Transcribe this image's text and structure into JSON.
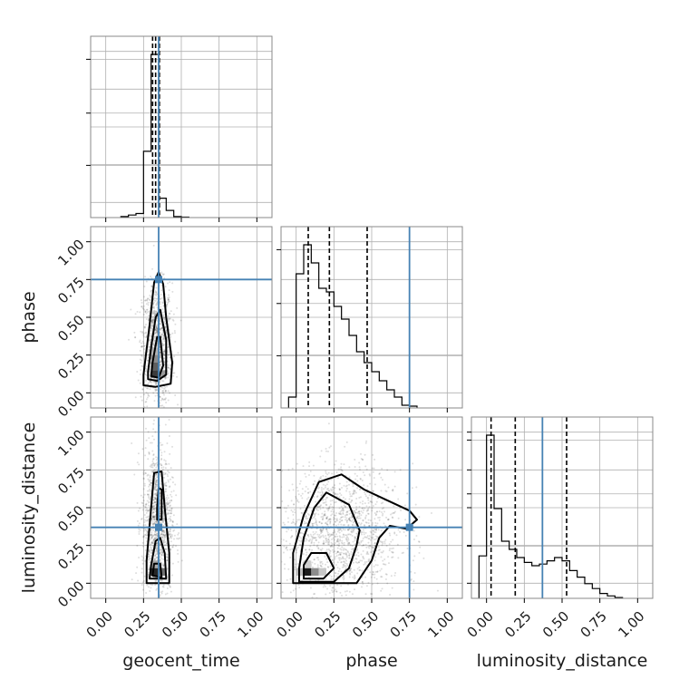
{
  "chart_data": {
    "type": "corner",
    "parameters": [
      "geocent_time",
      "phase",
      "luminosity_distance"
    ],
    "axis_range": [
      -0.1,
      1.1
    ],
    "tick_values": [
      0.0,
      0.25,
      0.5,
      0.75,
      1.0
    ],
    "tick_labels": [
      "0.00",
      "0.25",
      "0.50",
      "0.75",
      "1.00"
    ],
    "axis_labels": {
      "x": [
        "geocent_time",
        "phase",
        "luminosity_distance"
      ],
      "y": [
        "phase",
        "luminosity_distance"
      ]
    },
    "truths": {
      "geocent_time": 0.35,
      "phase": 0.75,
      "luminosity_distance": 0.37
    },
    "truth_color": "#4682b4",
    "grid": true,
    "marginals": [
      {
        "parameter": "geocent_time",
        "quantiles": [
          0.31,
          0.33,
          0.355
        ],
        "bins": [
          {
            "x": 0.125,
            "v": 2
          },
          {
            "x": 0.175,
            "v": 5
          },
          {
            "x": 0.225,
            "v": 8
          },
          {
            "x": 0.275,
            "v": 130
          },
          {
            "x": 0.325,
            "v": 320
          },
          {
            "x": 0.375,
            "v": 38
          },
          {
            "x": 0.425,
            "v": 14
          },
          {
            "x": 0.475,
            "v": 2
          },
          {
            "x": 0.525,
            "v": 1
          }
        ]
      },
      {
        "parameter": "phase",
        "quantiles": [
          0.08,
          0.22,
          0.47
        ],
        "bins": [
          {
            "x": -0.025,
            "v": 12
          },
          {
            "x": 0.025,
            "v": 148
          },
          {
            "x": 0.075,
            "v": 180
          },
          {
            "x": 0.125,
            "v": 160
          },
          {
            "x": 0.175,
            "v": 132
          },
          {
            "x": 0.225,
            "v": 128
          },
          {
            "x": 0.275,
            "v": 112
          },
          {
            "x": 0.325,
            "v": 98
          },
          {
            "x": 0.375,
            "v": 80
          },
          {
            "x": 0.425,
            "v": 62
          },
          {
            "x": 0.475,
            "v": 50
          },
          {
            "x": 0.525,
            "v": 40
          },
          {
            "x": 0.575,
            "v": 30
          },
          {
            "x": 0.625,
            "v": 20
          },
          {
            "x": 0.675,
            "v": 12
          },
          {
            "x": 0.725,
            "v": 3
          },
          {
            "x": 0.775,
            "v": 2
          }
        ]
      },
      {
        "parameter": "luminosity_distance",
        "quantiles": [
          0.03,
          0.19,
          0.53
        ],
        "bins": [
          {
            "x": -0.025,
            "v": 52
          },
          {
            "x": 0.025,
            "v": 200
          },
          {
            "x": 0.075,
            "v": 110
          },
          {
            "x": 0.125,
            "v": 70
          },
          {
            "x": 0.175,
            "v": 60
          },
          {
            "x": 0.225,
            "v": 50
          },
          {
            "x": 0.275,
            "v": 44
          },
          {
            "x": 0.325,
            "v": 40
          },
          {
            "x": 0.375,
            "v": 42
          },
          {
            "x": 0.425,
            "v": 46
          },
          {
            "x": 0.475,
            "v": 50
          },
          {
            "x": 0.525,
            "v": 46
          },
          {
            "x": 0.575,
            "v": 34
          },
          {
            "x": 0.625,
            "v": 26
          },
          {
            "x": 0.675,
            "v": 18
          },
          {
            "x": 0.725,
            "v": 12
          },
          {
            "x": 0.775,
            "v": 6
          },
          {
            "x": 0.825,
            "v": 3
          },
          {
            "x": 0.875,
            "v": 1
          }
        ]
      }
    ],
    "joint": [
      {
        "x": "geocent_time",
        "y": "phase",
        "scatter_center": [
          0.34,
          0.32
        ],
        "scatter_spread": [
          0.05,
          0.2
        ],
        "scatter_n": 1100,
        "density_cells": [
          {
            "x": 0.325,
            "y": 0.125,
            "shade": "#3c3c3c"
          },
          {
            "x": 0.325,
            "y": 0.175,
            "shade": "#5f5f5f"
          },
          {
            "x": 0.325,
            "y": 0.225,
            "shade": "#8d8d8d"
          },
          {
            "x": 0.325,
            "y": 0.275,
            "shade": "#b4b4b4"
          },
          {
            "x": 0.375,
            "y": 0.125,
            "shade": "#9a9a9a"
          }
        ],
        "contours": [
          [
            [
              0.25,
              0.05
            ],
            [
              0.33,
              0.04
            ],
            [
              0.43,
              0.06
            ],
            [
              0.44,
              0.2
            ],
            [
              0.4,
              0.5
            ],
            [
              0.38,
              0.72
            ],
            [
              0.35,
              0.8
            ],
            [
              0.32,
              0.73
            ],
            [
              0.29,
              0.45
            ],
            [
              0.25,
              0.12
            ]
          ],
          [
            [
              0.28,
              0.09
            ],
            [
              0.34,
              0.08
            ],
            [
              0.4,
              0.12
            ],
            [
              0.4,
              0.35
            ],
            [
              0.36,
              0.55
            ],
            [
              0.33,
              0.5
            ],
            [
              0.3,
              0.3
            ],
            [
              0.28,
              0.14
            ]
          ],
          [
            [
              0.3,
              0.11
            ],
            [
              0.35,
              0.1
            ],
            [
              0.38,
              0.18
            ],
            [
              0.36,
              0.37
            ],
            [
              0.34,
              0.37
            ],
            [
              0.31,
              0.2
            ]
          ]
        ]
      },
      {
        "x": "geocent_time",
        "y": "luminosity_distance",
        "scatter_center": [
          0.34,
          0.4
        ],
        "scatter_spread": [
          0.05,
          0.25
        ],
        "scatter_n": 1200,
        "density_cells": [
          {
            "x": 0.325,
            "y": 0.075,
            "shade": "#262626"
          },
          {
            "x": 0.375,
            "y": 0.075,
            "shade": "#737373"
          },
          {
            "x": 0.325,
            "y": 0.125,
            "shade": "#a9a9a9"
          }
        ],
        "contours": [
          [
            [
              0.27,
              0.0
            ],
            [
              0.42,
              0.0
            ],
            [
              0.42,
              0.2
            ],
            [
              0.39,
              0.5
            ],
            [
              0.37,
              0.74
            ],
            [
              0.32,
              0.73
            ],
            [
              0.3,
              0.5
            ],
            [
              0.27,
              0.15
            ]
          ],
          [
            [
              0.29,
              0.03
            ],
            [
              0.4,
              0.03
            ],
            [
              0.39,
              0.2
            ],
            [
              0.36,
              0.3
            ],
            [
              0.33,
              0.28
            ],
            [
              0.3,
              0.12
            ]
          ],
          [
            [
              0.31,
              0.05
            ],
            [
              0.37,
              0.04
            ],
            [
              0.36,
              0.13
            ],
            [
              0.32,
              0.13
            ]
          ],
          [
            [
              0.34,
              0.42
            ],
            [
              0.37,
              0.42
            ],
            [
              0.37,
              0.62
            ],
            [
              0.35,
              0.63
            ],
            [
              0.34,
              0.5
            ]
          ]
        ]
      },
      {
        "x": "phase",
        "y": "luminosity_distance",
        "scatter_center": [
          0.3,
          0.33
        ],
        "scatter_spread": [
          0.2,
          0.22
        ],
        "scatter_n": 1500,
        "density_cells": [
          {
            "x": 0.025,
            "y": 0.075,
            "shade": "#bcbcbc"
          },
          {
            "x": 0.075,
            "y": 0.075,
            "shade": "#1c1c1c"
          },
          {
            "x": 0.125,
            "y": 0.075,
            "shade": "#8c8c8c"
          },
          {
            "x": 0.175,
            "y": 0.075,
            "shade": "#c8c8c8"
          },
          {
            "x": 0.075,
            "y": 0.125,
            "shade": "#cfcfcf"
          }
        ],
        "contours": [
          [
            [
              -0.02,
              0.0
            ],
            [
              0.4,
              0.0
            ],
            [
              0.5,
              0.15
            ],
            [
              0.55,
              0.3
            ],
            [
              0.62,
              0.38
            ],
            [
              0.73,
              0.36
            ],
            [
              0.8,
              0.42
            ],
            [
              0.75,
              0.48
            ],
            [
              0.6,
              0.55
            ],
            [
              0.45,
              0.62
            ],
            [
              0.3,
              0.72
            ],
            [
              0.15,
              0.67
            ],
            [
              0.05,
              0.45
            ],
            [
              -0.02,
              0.2
            ]
          ],
          [
            [
              0.02,
              0.01
            ],
            [
              0.25,
              0.01
            ],
            [
              0.35,
              0.1
            ],
            [
              0.4,
              0.25
            ],
            [
              0.42,
              0.35
            ],
            [
              0.35,
              0.52
            ],
            [
              0.2,
              0.6
            ],
            [
              0.12,
              0.5
            ],
            [
              0.05,
              0.3
            ],
            [
              0.02,
              0.1
            ]
          ],
          [
            [
              0.05,
              0.03
            ],
            [
              0.18,
              0.03
            ],
            [
              0.25,
              0.1
            ],
            [
              0.2,
              0.2
            ],
            [
              0.1,
              0.2
            ],
            [
              0.05,
              0.12
            ]
          ]
        ]
      }
    ]
  }
}
